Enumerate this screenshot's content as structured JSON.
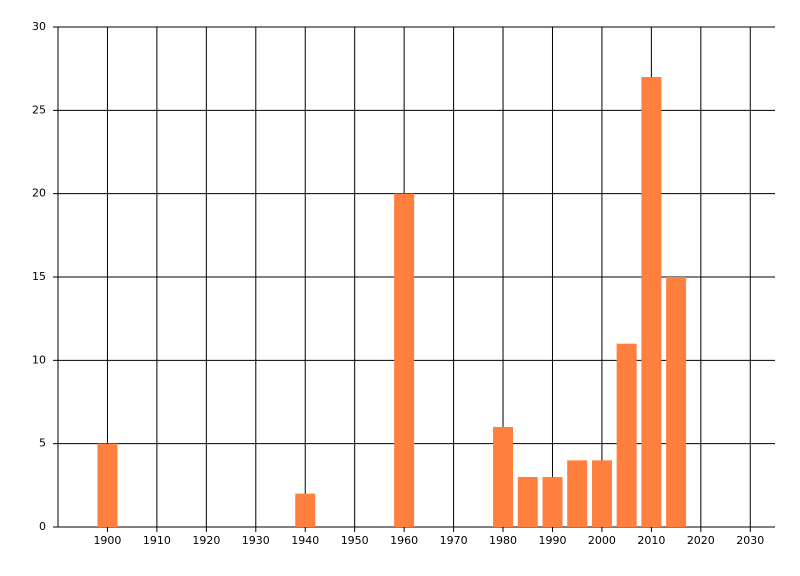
{
  "chart_data": {
    "type": "bar",
    "x": [
      1900,
      1940,
      1960,
      1980,
      1985,
      1990,
      1995,
      2000,
      2005,
      2010,
      2015
    ],
    "values": [
      5,
      2,
      20,
      6,
      3,
      3,
      4,
      4,
      11,
      27,
      15
    ],
    "color": "#ff7f3f",
    "xlim": [
      1890,
      2035
    ],
    "xticks": [
      1900,
      1910,
      1920,
      1930,
      1940,
      1950,
      1960,
      1970,
      1980,
      1990,
      2000,
      2010,
      2020,
      2030
    ],
    "ylim": [
      0,
      30
    ],
    "yticks": [
      0,
      5,
      10,
      15,
      20,
      25,
      30
    ],
    "grid": true
  }
}
